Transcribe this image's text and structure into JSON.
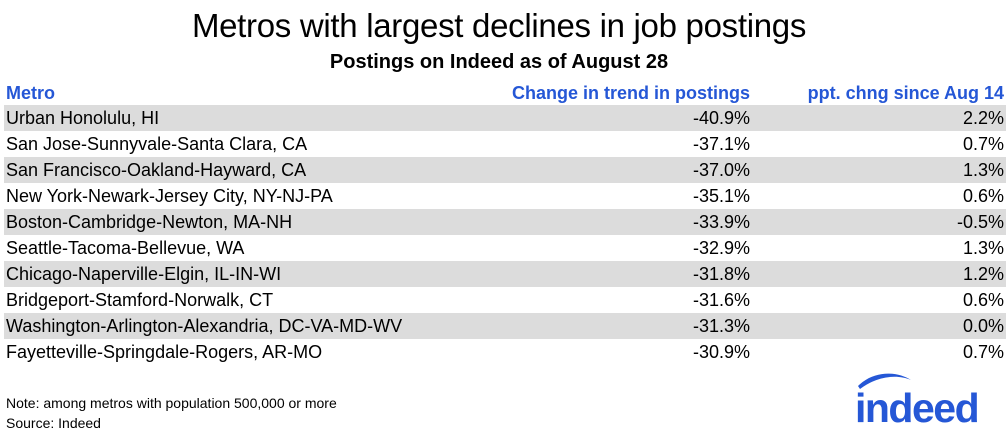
{
  "title": "Metros with largest declines in job postings",
  "subtitle": "Postings on Indeed as of August 28",
  "chart_data": {
    "type": "table",
    "columns": [
      "Metro",
      "Change in trend in postings",
      "ppt. chng since Aug 14"
    ],
    "rows": [
      [
        "Urban Honolulu, HI",
        "-40.9%",
        "2.2%"
      ],
      [
        "San Jose-Sunnyvale-Santa Clara, CA",
        "-37.1%",
        "0.7%"
      ],
      [
        "San Francisco-Oakland-Hayward, CA",
        "-37.0%",
        "1.3%"
      ],
      [
        "New York-Newark-Jersey City, NY-NJ-PA",
        "-35.1%",
        "0.6%"
      ],
      [
        "Boston-Cambridge-Newton, MA-NH",
        "-33.9%",
        "-0.5%"
      ],
      [
        "Seattle-Tacoma-Bellevue, WA",
        "-32.9%",
        "1.3%"
      ],
      [
        "Chicago-Naperville-Elgin, IL-IN-WI",
        "-31.8%",
        "1.2%"
      ],
      [
        "Bridgeport-Stamford-Norwalk, CT",
        "-31.6%",
        "0.6%"
      ],
      [
        "Washington-Arlington-Alexandria, DC-VA-MD-WV",
        "-31.3%",
        "0.0%"
      ],
      [
        "Fayetteville-Springdale-Rogers, AR-MO",
        "-30.9%",
        "0.7%"
      ]
    ]
  },
  "note": "Note: among metros with population 500,000 or more",
  "source": "Source: Indeed",
  "logo": {
    "text": "indeed",
    "color": "#2557d6",
    "icon": "indeed-logo-icon"
  },
  "colors": {
    "header_text": "#2557d6",
    "row_band": "#dcdcdc"
  }
}
